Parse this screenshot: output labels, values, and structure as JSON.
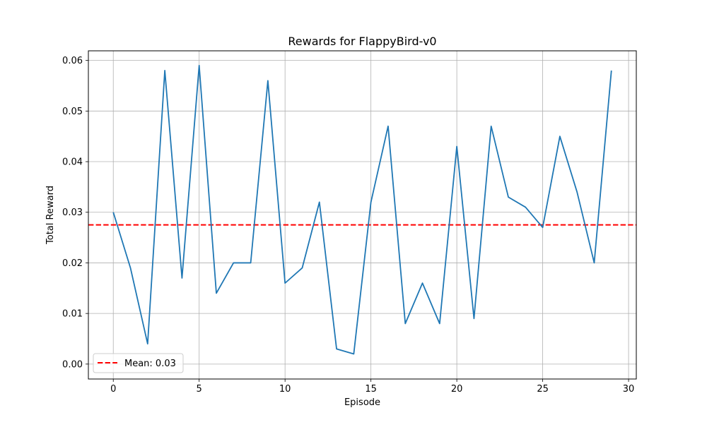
{
  "chart_data": {
    "type": "line",
    "title": "Rewards for FlappyBird-v0",
    "xlabel": "Episode",
    "ylabel": "Total Reward",
    "xlim": [
      -1.45,
      30.45
    ],
    "ylim": [
      -0.00295,
      0.0619
    ],
    "x_ticks": [
      0,
      5,
      10,
      15,
      20,
      25,
      30
    ],
    "y_ticks": [
      0.0,
      0.01,
      0.02,
      0.03,
      0.04,
      0.05,
      0.06
    ],
    "x_tick_labels": [
      "0",
      "5",
      "10",
      "15",
      "20",
      "25",
      "30"
    ],
    "y_tick_labels": [
      "0.00",
      "0.01",
      "0.02",
      "0.03",
      "0.04",
      "0.05",
      "0.06"
    ],
    "grid": true,
    "legend_position": "lower-left",
    "series": [
      {
        "x": [
          0,
          1,
          2,
          3,
          4,
          5,
          6,
          7,
          8,
          9,
          10,
          11,
          12,
          13,
          14,
          15,
          16,
          17,
          18,
          19,
          20,
          21,
          22,
          23,
          24,
          25,
          26,
          27,
          28,
          29
        ],
        "values": [
          0.03,
          0.019,
          0.004,
          0.058,
          0.017,
          0.059,
          0.014,
          0.02,
          0.02,
          0.056,
          0.016,
          0.019,
          0.032,
          0.003,
          0.002,
          0.032,
          0.047,
          0.008,
          0.016,
          0.008,
          0.043,
          0.009,
          0.047,
          0.033,
          0.031,
          0.027,
          0.045,
          0.034,
          0.02,
          0.058
        ],
        "color": "#1f77b4"
      }
    ],
    "mean_line": {
      "label": "Mean: 0.03",
      "value": 0.0275,
      "color": "#ff0000",
      "style": "dashed"
    }
  }
}
